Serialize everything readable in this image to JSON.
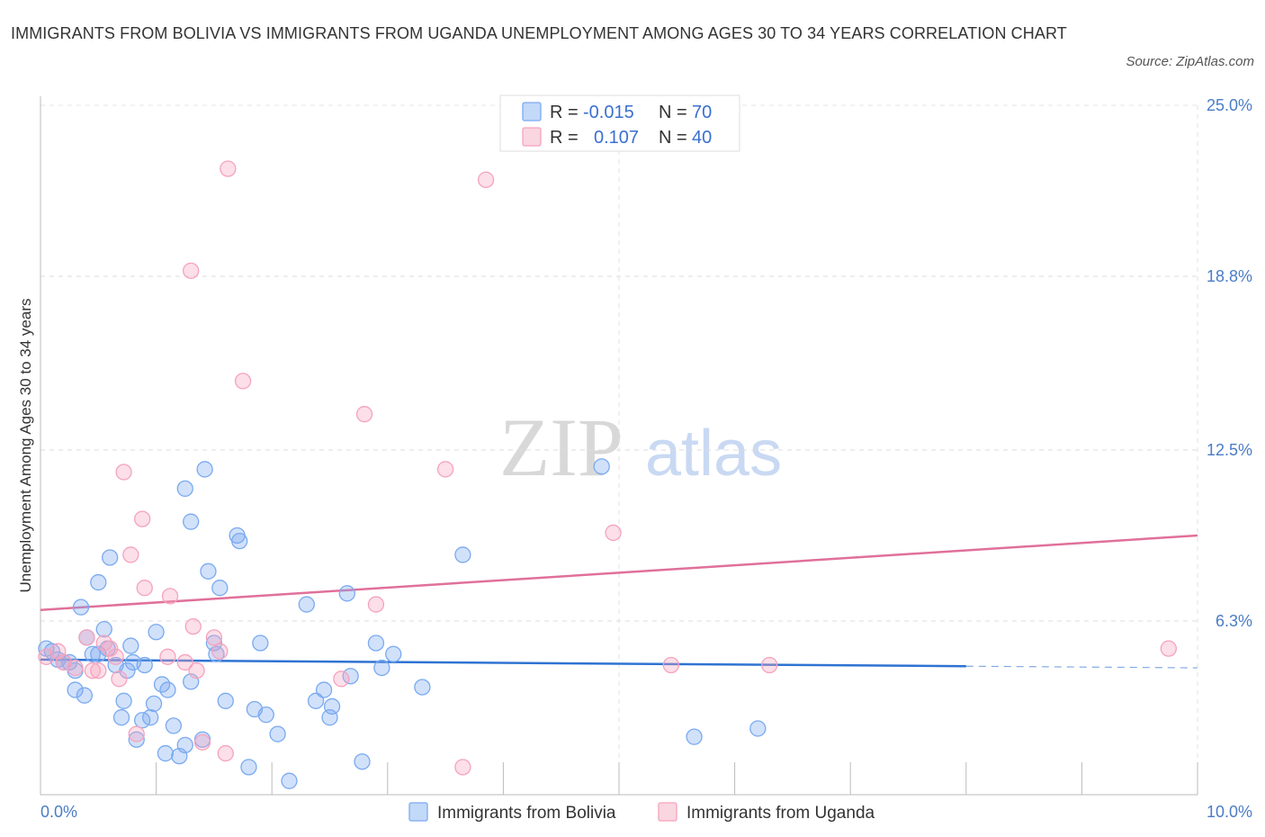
{
  "title": "IMMIGRANTS FROM BOLIVIA VS IMMIGRANTS FROM UGANDA UNEMPLOYMENT AMONG AGES 30 TO 34 YEARS CORRELATION CHART",
  "source": "Source: ZipAtlas.com",
  "watermark": {
    "zip": "ZIP",
    "atlas": "atlas"
  },
  "legend": {
    "rows": [
      {
        "r_label": "R =",
        "r_value": "-0.015",
        "n_label": "N =",
        "n_value": "70"
      },
      {
        "r_label": "R =",
        "r_value": "0.107",
        "n_label": "N =",
        "n_value": "40"
      }
    ]
  },
  "chart_data": {
    "type": "scatter",
    "xlabel": "",
    "ylabel": "Unemployment Among Ages 30 to 34 years",
    "xlim": [
      0,
      10
    ],
    "ylim": [
      0,
      25
    ],
    "x_tick_labels": [
      {
        "value": 0,
        "label": "0.0%"
      },
      {
        "value": 10,
        "label": "10.0%"
      }
    ],
    "y_tick_labels": [
      {
        "value": 6.3,
        "label": "6.3%"
      },
      {
        "value": 12.5,
        "label": "12.5%"
      },
      {
        "value": 18.8,
        "label": "18.8%"
      },
      {
        "value": 25.0,
        "label": "25.0%"
      }
    ],
    "grid": true,
    "legend_position": "top-center",
    "series": [
      {
        "name": "Immigrants from Bolivia",
        "color": "#7aaaf0",
        "line_color": "#2f73d2",
        "trend": {
          "x0": 0,
          "y0": 4.9,
          "x1": 10,
          "y1": 4.6,
          "solid_until_x": 8.0
        },
        "points": [
          [
            0.05,
            5.3
          ],
          [
            0.1,
            5.2
          ],
          [
            0.15,
            4.9
          ],
          [
            0.2,
            4.8
          ],
          [
            0.25,
            4.8
          ],
          [
            0.3,
            4.5
          ],
          [
            0.3,
            3.8
          ],
          [
            0.35,
            6.8
          ],
          [
            0.38,
            3.6
          ],
          [
            0.4,
            5.7
          ],
          [
            0.45,
            5.1
          ],
          [
            0.5,
            5.1
          ],
          [
            0.5,
            7.7
          ],
          [
            0.55,
            6.0
          ],
          [
            0.58,
            5.3
          ],
          [
            0.6,
            8.6
          ],
          [
            0.65,
            4.7
          ],
          [
            0.7,
            2.8
          ],
          [
            0.72,
            3.4
          ],
          [
            0.75,
            4.5
          ],
          [
            0.78,
            5.4
          ],
          [
            0.8,
            4.8
          ],
          [
            0.83,
            2.0
          ],
          [
            0.88,
            2.7
          ],
          [
            0.9,
            4.7
          ],
          [
            0.95,
            2.8
          ],
          [
            0.98,
            3.3
          ],
          [
            1.0,
            5.9
          ],
          [
            1.05,
            4.0
          ],
          [
            1.08,
            1.5
          ],
          [
            1.1,
            3.8
          ],
          [
            1.15,
            2.5
          ],
          [
            1.2,
            1.4
          ],
          [
            1.25,
            1.8
          ],
          [
            1.25,
            11.1
          ],
          [
            1.3,
            9.9
          ],
          [
            1.3,
            4.1
          ],
          [
            1.4,
            2.0
          ],
          [
            1.42,
            11.8
          ],
          [
            1.45,
            8.1
          ],
          [
            1.5,
            5.5
          ],
          [
            1.52,
            5.1
          ],
          [
            1.55,
            7.5
          ],
          [
            1.6,
            3.4
          ],
          [
            1.7,
            9.4
          ],
          [
            1.72,
            9.2
          ],
          [
            1.8,
            1.0
          ],
          [
            1.85,
            3.1
          ],
          [
            1.9,
            5.5
          ],
          [
            1.95,
            2.9
          ],
          [
            2.05,
            2.2
          ],
          [
            2.15,
            0.5
          ],
          [
            2.3,
            6.9
          ],
          [
            2.38,
            3.4
          ],
          [
            2.45,
            3.8
          ],
          [
            2.5,
            2.8
          ],
          [
            2.52,
            3.2
          ],
          [
            2.65,
            7.3
          ],
          [
            2.68,
            4.3
          ],
          [
            2.78,
            1.2
          ],
          [
            2.9,
            5.5
          ],
          [
            2.95,
            4.6
          ],
          [
            3.05,
            5.1
          ],
          [
            3.3,
            3.9
          ],
          [
            3.65,
            8.7
          ],
          [
            4.85,
            11.9
          ],
          [
            5.65,
            2.1
          ],
          [
            6.2,
            2.4
          ]
        ]
      },
      {
        "name": "Immigrants from Uganda",
        "color": "#f5a3bd",
        "line_color": "#e0709a",
        "trend": {
          "x0": 0,
          "y0": 6.7,
          "x1": 10,
          "y1": 9.4
        },
        "points": [
          [
            0.05,
            5.0
          ],
          [
            0.15,
            5.2
          ],
          [
            0.2,
            4.8
          ],
          [
            0.3,
            4.6
          ],
          [
            0.4,
            5.7
          ],
          [
            0.45,
            4.5
          ],
          [
            0.5,
            4.5
          ],
          [
            0.55,
            5.5
          ],
          [
            0.6,
            5.3
          ],
          [
            0.65,
            5.0
          ],
          [
            0.68,
            4.2
          ],
          [
            0.72,
            11.7
          ],
          [
            0.78,
            8.7
          ],
          [
            0.83,
            2.2
          ],
          [
            0.88,
            10.0
          ],
          [
            0.9,
            7.5
          ],
          [
            1.1,
            5.0
          ],
          [
            1.12,
            7.2
          ],
          [
            1.25,
            4.8
          ],
          [
            1.3,
            19.0
          ],
          [
            1.32,
            6.1
          ],
          [
            1.35,
            4.5
          ],
          [
            1.4,
            1.9
          ],
          [
            1.5,
            5.7
          ],
          [
            1.55,
            5.2
          ],
          [
            1.6,
            1.5
          ],
          [
            1.62,
            22.7
          ],
          [
            1.75,
            15.0
          ],
          [
            2.6,
            4.2
          ],
          [
            2.8,
            13.8
          ],
          [
            2.9,
            6.9
          ],
          [
            3.5,
            11.8
          ],
          [
            3.65,
            1.0
          ],
          [
            3.85,
            22.3
          ],
          [
            4.95,
            9.5
          ],
          [
            5.45,
            4.7
          ],
          [
            6.3,
            4.7
          ],
          [
            9.75,
            5.3
          ]
        ]
      }
    ]
  }
}
